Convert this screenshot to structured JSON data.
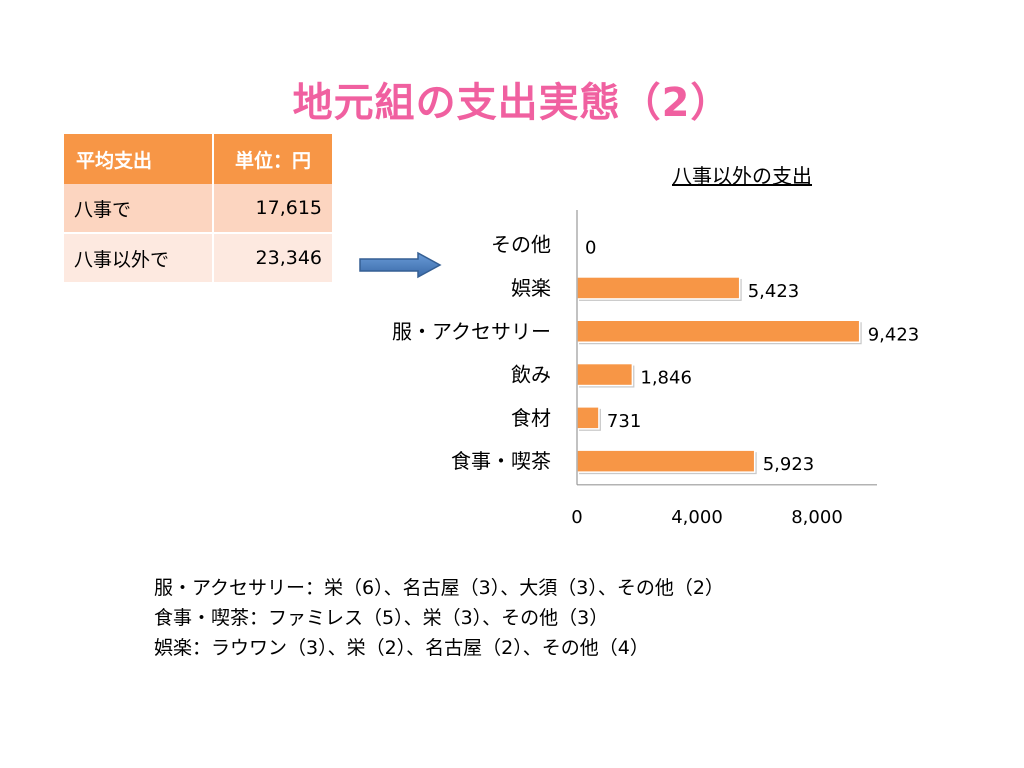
{
  "title": "地元組の支出実態（2）",
  "table": {
    "headers": [
      "平均支出",
      "単位：円"
    ],
    "rows": [
      {
        "label": "八事で",
        "value": "17,615"
      },
      {
        "label": "八事以外で",
        "value": "23,346"
      }
    ]
  },
  "colors": {
    "title": "#f060a0",
    "accent": "#f79646",
    "arrow": "#4f81bd"
  },
  "notes": [
    "服・アクセサリー：栄（6）、名古屋（3）、大須（3）、その他（2）",
    "食事・喫茶：ファミレス（5）、栄（3）、その他（3）",
    "娯楽：ラウワン（3）、栄（2）、名古屋（2）、その他（4）"
  ],
  "chart_data": {
    "type": "bar",
    "orientation": "horizontal",
    "title": "八事以外の支出",
    "categories": [
      "その他",
      "娯楽",
      "服・アクセサリー",
      "飲み",
      "食材",
      "食事・喫茶"
    ],
    "values": [
      0,
      5423,
      9423,
      1846,
      731,
      5923
    ],
    "value_labels": [
      "0",
      "5,423",
      "9,423",
      "1,846",
      "731",
      "5,923"
    ],
    "xlim": [
      0,
      10000
    ],
    "x_ticks": [
      0,
      4000,
      8000
    ],
    "x_tick_labels": [
      "0",
      "4,000",
      "8,000"
    ],
    "grid": false,
    "bar_color": "#f79646"
  }
}
